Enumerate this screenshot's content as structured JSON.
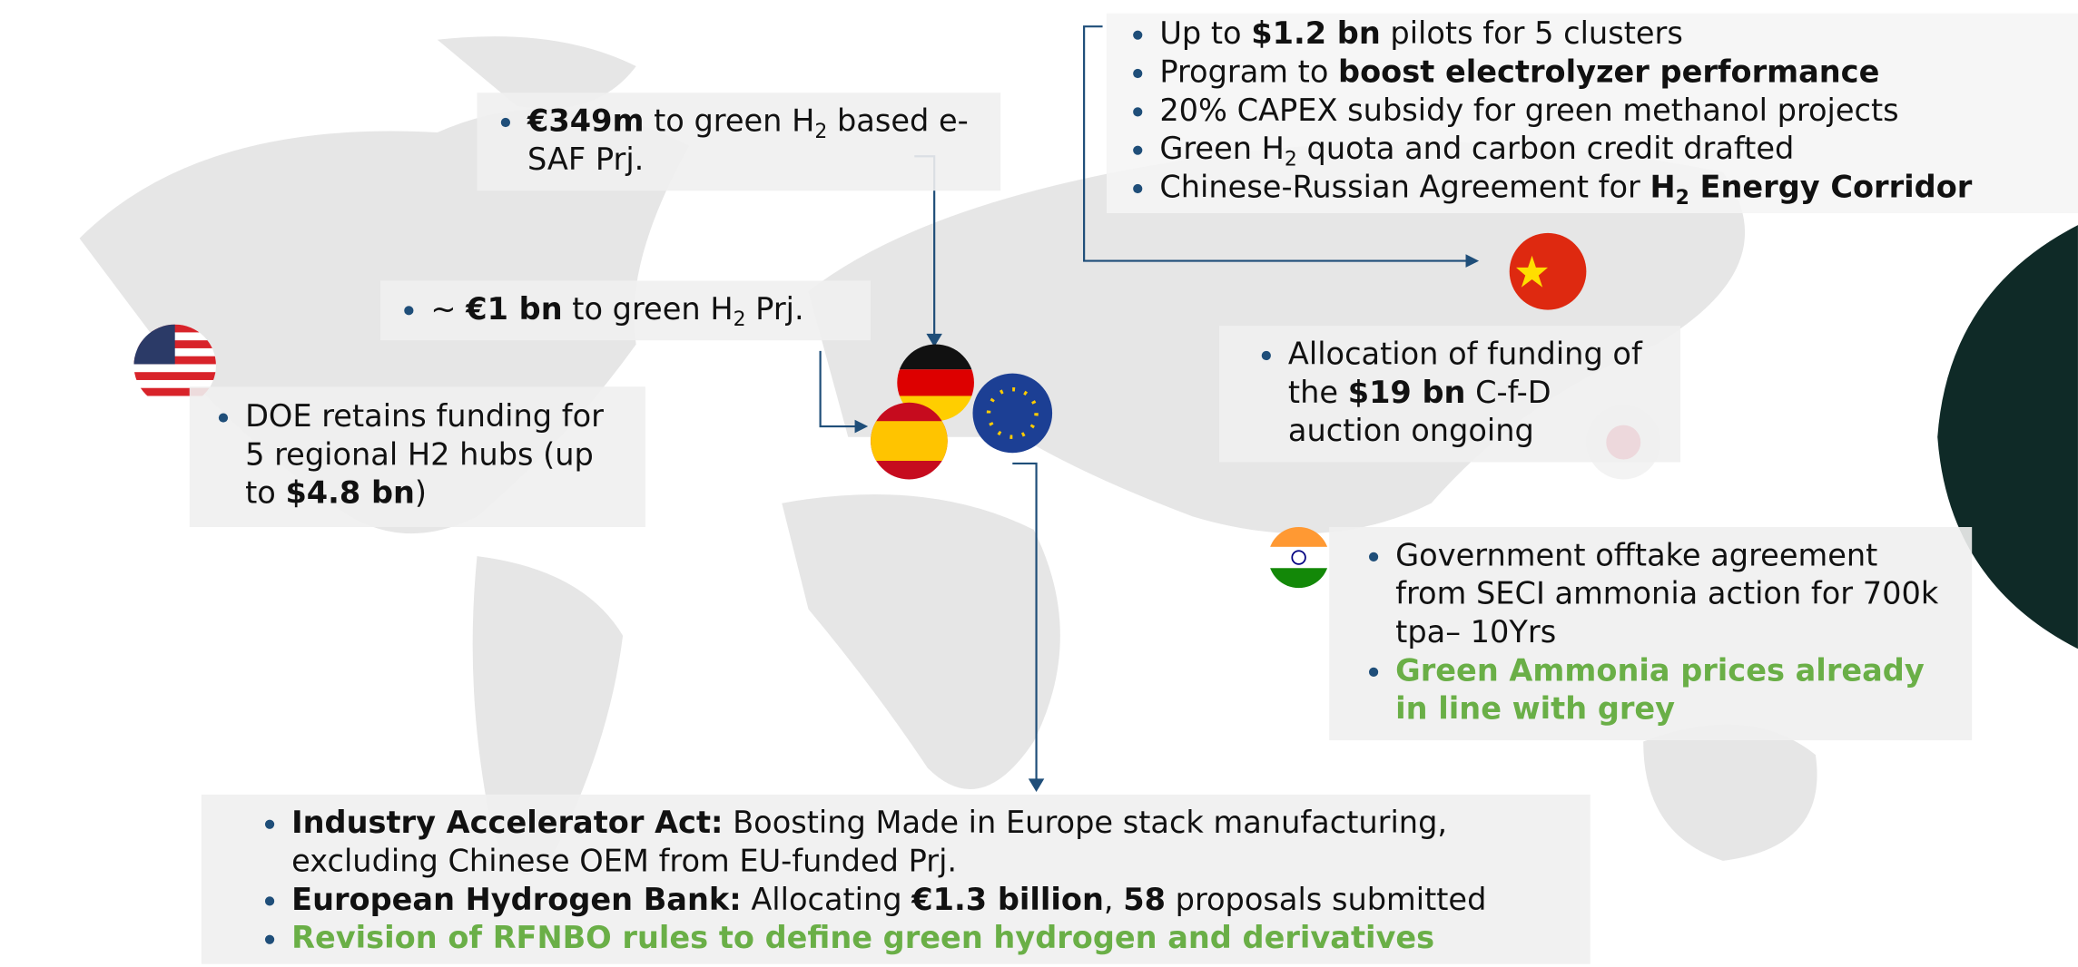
{
  "callouts": [
    {
      "bullets": [
        [
          {
            "text": "€349m",
            "style": [
              "bold"
            ]
          },
          {
            "text": " to green H"
          },
          {
            "text": "2",
            "style": [
              "sub"
            ]
          },
          {
            "text": " based e-SAF Prj."
          }
        ]
      ]
    },
    {
      "bullets": [
        [
          {
            "text": "~ "
          },
          {
            "text": "€1 bn",
            "style": [
              "bold"
            ]
          },
          {
            "text": " to green H"
          },
          {
            "text": "2",
            "style": [
              "sub"
            ]
          },
          {
            "text": " Prj."
          }
        ]
      ]
    },
    {
      "bullets": [
        [
          {
            "text": "DOE retains funding for 5 regional H2 hubs (up to "
          },
          {
            "text": "$4.8 bn",
            "style": [
              "bold"
            ]
          },
          {
            "text": ")"
          }
        ]
      ]
    },
    {
      "bullets": [
        [
          {
            "text": "Up to "
          },
          {
            "text": "$1.2 bn",
            "style": [
              "bold"
            ]
          },
          {
            "text": " pilots for 5 clusters"
          }
        ],
        [
          {
            "text": "Program to "
          },
          {
            "text": "boost electrolyzer performance",
            "style": [
              "bold"
            ]
          }
        ],
        [
          {
            "text": "20% CAPEX subsidy for green methanol projects"
          }
        ],
        [
          {
            "text": "Green H"
          },
          {
            "text": "2",
            "style": [
              "sub"
            ]
          },
          {
            "text": " quota and carbon credit drafted"
          }
        ],
        [
          {
            "text": "Chinese-Russian Agreement for "
          },
          {
            "text": "H",
            "style": [
              "bold"
            ]
          },
          {
            "text": "2",
            "style": [
              "bold",
              "sub"
            ]
          },
          {
            "text": " Energy Corridor",
            "style": [
              "bold"
            ]
          }
        ]
      ]
    },
    {
      "bullets": [
        [
          {
            "text": "Allocation of funding of the "
          },
          {
            "text": "$19 bn",
            "style": [
              "bold"
            ]
          },
          {
            "text": " C-f-D auction ongoing"
          }
        ]
      ]
    },
    {
      "bullets": [
        [
          {
            "text": "Government offtake agreement from SECI ammonia action for 700k tpa– 10Yrs"
          }
        ],
        [
          {
            "text": "Green Ammonia prices already in line with grey",
            "style": [
              "bold",
              "green"
            ]
          }
        ]
      ]
    },
    {
      "bullets": [
        [
          {
            "text": "Industry Accelerator Act:",
            "style": [
              "bold"
            ]
          },
          {
            "text": " Boosting Made in Europe stack manufacturing, excluding Chinese OEM from EU-funded Prj."
          }
        ],
        [
          {
            "text": "European Hydrogen Bank:",
            "style": [
              "bold"
            ]
          },
          {
            "text": " Allocating "
          },
          {
            "text": "€1.3 billion",
            "style": [
              "bold"
            ]
          },
          {
            "text": ", "
          },
          {
            "text": "58",
            "style": [
              "bold"
            ]
          },
          {
            "text": " proposals submitted"
          }
        ],
        [
          {
            "text": "Revision of RFNBO rules to define green hydrogen and derivatives",
            "style": [
              "bold",
              "green"
            ]
          }
        ]
      ]
    }
  ]
}
